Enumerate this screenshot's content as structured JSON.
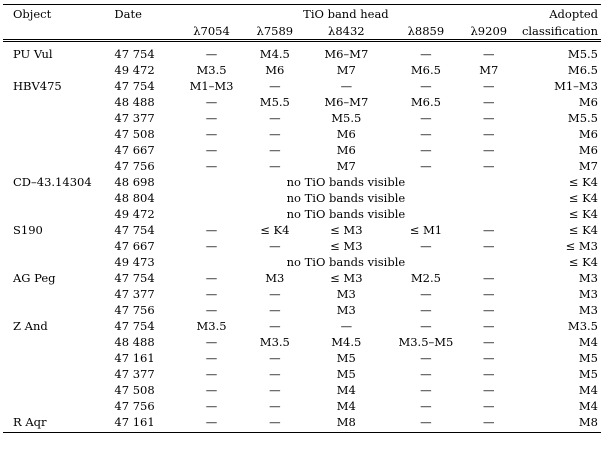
{
  "header": {
    "object": "Object",
    "date": "Date",
    "band_group": "TiO band head",
    "adopted_line1": "Adopted",
    "adopted_line2": "classification",
    "bands": [
      "λ7054",
      "λ7589",
      "λ8432",
      "λ8859",
      "λ9209"
    ]
  },
  "rows": [
    {
      "object": "PU Vul",
      "date": "47 754",
      "cells": [
        "—",
        "M4.5",
        "M6–M7",
        "—",
        "—"
      ],
      "adopted": "M5.5"
    },
    {
      "object": "",
      "date": "49 472",
      "cells": [
        "M3.5",
        "M6",
        "M7",
        "M6.5",
        "M7"
      ],
      "adopted": "M6.5"
    },
    {
      "object": "HBV475",
      "date": "47 754",
      "cells": [
        "M1–M3",
        "—",
        "—",
        "—",
        "—"
      ],
      "adopted": "M1–M3"
    },
    {
      "object": "",
      "date": "48 488",
      "cells": [
        "—",
        "M5.5",
        "M6–M7",
        "M6.5",
        "—"
      ],
      "adopted": "M6"
    },
    {
      "object": "",
      "date": "47 377",
      "cells": [
        "—",
        "—",
        "M5.5",
        "—",
        "—"
      ],
      "adopted": "M5.5"
    },
    {
      "object": "",
      "date": "47 508",
      "cells": [
        "—",
        "—",
        "M6",
        "—",
        "—"
      ],
      "adopted": "M6"
    },
    {
      "object": "",
      "date": "47 667",
      "cells": [
        "—",
        "—",
        "M6",
        "—",
        "—"
      ],
      "adopted": "M6"
    },
    {
      "object": "",
      "date": "47 756",
      "cells": [
        "—",
        "—",
        "M7",
        "—",
        "—"
      ],
      "adopted": "M7"
    },
    {
      "object": "CD–43.14304",
      "date": "48 698",
      "note": "no TiO bands visible",
      "adopted": "≤ K4"
    },
    {
      "object": "",
      "date": "48 804",
      "note": "no TiO bands visible",
      "adopted": "≤ K4"
    },
    {
      "object": "",
      "date": "49 472",
      "note": "no TiO bands visible",
      "adopted": "≤ K4"
    },
    {
      "object": "S190",
      "date": "47 754",
      "cells": [
        "—",
        "≤ K4",
        "≤ M3",
        "≤ M1",
        "—"
      ],
      "adopted": "≤ K4"
    },
    {
      "object": "",
      "date": "47 667",
      "cells": [
        "—",
        "—",
        "≤ M3",
        "—",
        "—"
      ],
      "adopted": "≤ M3"
    },
    {
      "object": "",
      "date": "49 473",
      "note": "no TiO bands visible",
      "adopted": "≤ K4"
    },
    {
      "object": "AG Peg",
      "date": "47 754",
      "cells": [
        "—",
        "M3",
        "≤ M3",
        "M2.5",
        "—"
      ],
      "adopted": "M3"
    },
    {
      "object": "",
      "date": "47 377",
      "cells": [
        "—",
        "—",
        "M3",
        "—",
        "—"
      ],
      "adopted": "M3"
    },
    {
      "object": "",
      "date": "47 756",
      "cells": [
        "—",
        "—",
        "M3",
        "—",
        "—"
      ],
      "adopted": "M3"
    },
    {
      "object": "Z And",
      "date": "47 754",
      "cells": [
        "M3.5",
        "—",
        "—",
        "—",
        "—"
      ],
      "adopted": "M3.5"
    },
    {
      "object": "",
      "date": "48 488",
      "cells": [
        "—",
        "M3.5",
        "M4.5",
        "M3.5–M5",
        "—"
      ],
      "adopted": "M4"
    },
    {
      "object": "",
      "date": "47 161",
      "cells": [
        "—",
        "—",
        "M5",
        "—",
        "—"
      ],
      "adopted": "M5"
    },
    {
      "object": "",
      "date": "47 377",
      "cells": [
        "—",
        "—",
        "M5",
        "—",
        "—"
      ],
      "adopted": "M5"
    },
    {
      "object": "",
      "date": "47 508",
      "cells": [
        "—",
        "—",
        "M4",
        "—",
        "—"
      ],
      "adopted": "M4"
    },
    {
      "object": "",
      "date": "47 756",
      "cells": [
        "—",
        "—",
        "M4",
        "—",
        "—"
      ],
      "adopted": "M4"
    },
    {
      "object": "R Aqr",
      "date": "47 161",
      "cells": [
        "—",
        "—",
        "M8",
        "—",
        "—"
      ],
      "adopted": "M8"
    }
  ]
}
